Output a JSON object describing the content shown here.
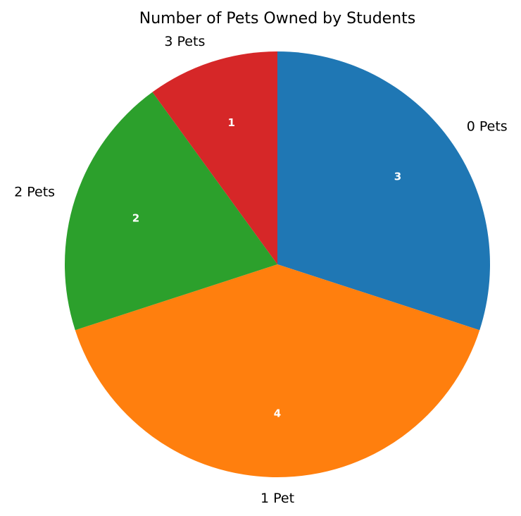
{
  "chart_data": {
    "type": "pie",
    "title": "Number of Pets Owned by Students",
    "categories": [
      "0 Pets",
      "1 Pet",
      "2 Pets",
      "3 Pets"
    ],
    "values": [
      3,
      4,
      2,
      1
    ],
    "value_labels": [
      "3",
      "4",
      "2",
      "1"
    ],
    "colors": [
      "#1f77b4",
      "#ff7f0e",
      "#2ca02c",
      "#d62728"
    ],
    "start_angle": 90,
    "direction": "clockwise",
    "legend": "none"
  }
}
